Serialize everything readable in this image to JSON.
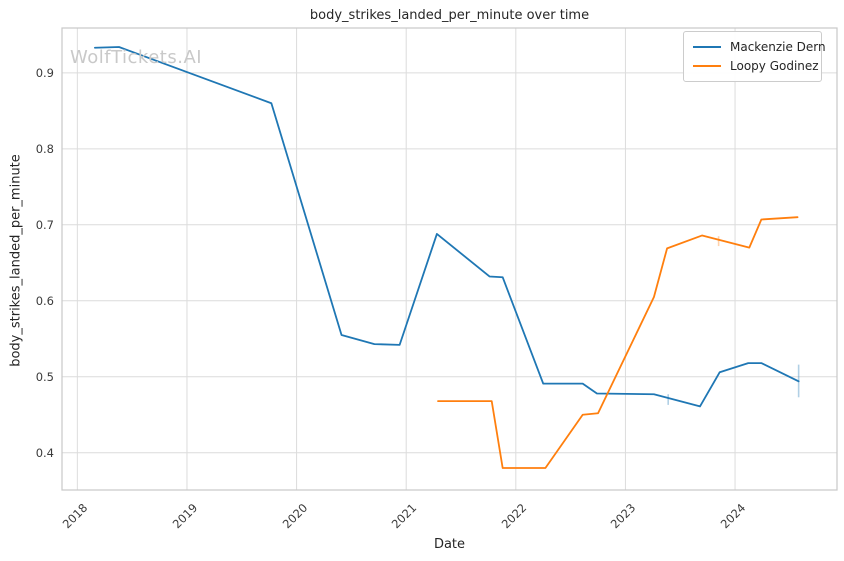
{
  "title": "body_strikes_landed_per_minute over time",
  "watermark": "WolfTickets.AI",
  "colors": {
    "grid": "#dcdcdc",
    "spine": "#c8c8c8",
    "title_text": "#262626",
    "tick_text": "#3b3b3b",
    "watermark": "#c9c9c9",
    "legend_border": "#cccccc"
  },
  "chart_data": {
    "type": "line",
    "title": "body_strikes_landed_per_minute over time",
    "xlabel": "Date",
    "ylabel": "body_strikes_landed_per_minute",
    "xlim": [
      2017.86,
      2024.93
    ],
    "ylim": [
      0.351,
      0.959
    ],
    "x_ticks": [
      2018,
      2019,
      2020,
      2021,
      2022,
      2023,
      2024
    ],
    "y_ticks": [
      0.4,
      0.5,
      0.6,
      0.7,
      0.8,
      0.9
    ],
    "grid": true,
    "legend_position": "upper right",
    "series": [
      {
        "name": "Mackenzie Dern",
        "color": "#1f77b4",
        "x": [
          2018.16,
          2018.38,
          2019.77,
          2020.41,
          2020.71,
          2020.94,
          2021.28,
          2021.76,
          2021.88,
          2022.25,
          2022.61,
          2022.74,
          2023.26,
          2023.39,
          2023.68,
          2023.86,
          2024.12,
          2024.24,
          2024.58
        ],
        "y": [
          0.933,
          0.934,
          0.86,
          0.555,
          0.543,
          0.542,
          0.688,
          0.632,
          0.631,
          0.491,
          0.491,
          0.478,
          0.477,
          0.472,
          0.461,
          0.506,
          0.518,
          0.518,
          0.494
        ],
        "error_bars": [
          {
            "x": 2023.39,
            "y_low": 0.463,
            "y_high": 0.477
          },
          {
            "x": 2024.58,
            "y_low": 0.473,
            "y_high": 0.516
          }
        ]
      },
      {
        "name": "Loopy Godinez",
        "color": "#ff7f0e",
        "x": [
          2021.29,
          2021.78,
          2021.88,
          2022.27,
          2022.61,
          2022.75,
          2023.26,
          2023.38,
          2023.7,
          2024.13,
          2024.24,
          2024.57
        ],
        "y": [
          0.468,
          0.468,
          0.38,
          0.38,
          0.45,
          0.452,
          0.605,
          0.669,
          0.686,
          0.67,
          0.707,
          0.71
        ],
        "error_bars": [
          {
            "x": 2023.85,
            "y_low": 0.672,
            "y_high": 0.685
          }
        ]
      }
    ]
  }
}
